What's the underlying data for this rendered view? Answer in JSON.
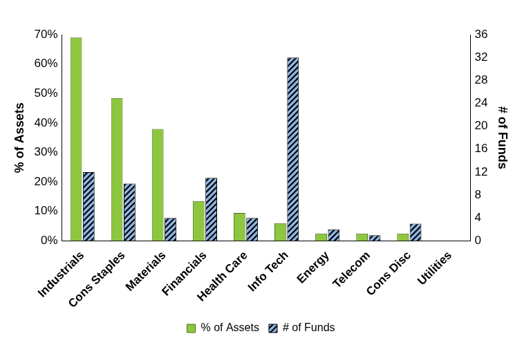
{
  "chart_data": {
    "type": "bar",
    "categories": [
      "Industrials",
      "Cons Staples",
      "Materials",
      "Financials",
      "Health Care",
      "Info Tech",
      "Energy",
      "Telecom",
      "Cons Disc",
      "Utilities"
    ],
    "series": [
      {
        "name": "% of Assets",
        "color": "#8dc63f",
        "values": [
          69,
          48.5,
          38,
          13.5,
          9.5,
          6,
          2.5,
          2.5,
          2.5,
          0
        ]
      },
      {
        "name": "# of Funds",
        "color": "#8db4e2",
        "axis": "y2",
        "values": [
          12,
          10,
          4,
          11,
          4,
          32,
          2,
          1,
          3,
          0
        ]
      }
    ],
    "ylabel": "% of Assets",
    "y2label": "# of Funds",
    "ylim": [
      0,
      70
    ],
    "yticks": [
      {
        "value": 0,
        "label": "0%"
      },
      {
        "value": 10,
        "label": "10%"
      },
      {
        "value": 20,
        "label": "20%"
      },
      {
        "value": 30,
        "label": "30%"
      },
      {
        "value": 40,
        "label": "40%"
      },
      {
        "value": 50,
        "label": "50%"
      },
      {
        "value": 60,
        "label": "60%"
      },
      {
        "value": 70,
        "label": "70%"
      }
    ],
    "y2lim": [
      0,
      36
    ],
    "y2ticks": [
      0,
      4,
      8,
      12,
      16,
      20,
      24,
      28,
      32,
      36
    ],
    "grid": false,
    "legend": "bottom"
  }
}
